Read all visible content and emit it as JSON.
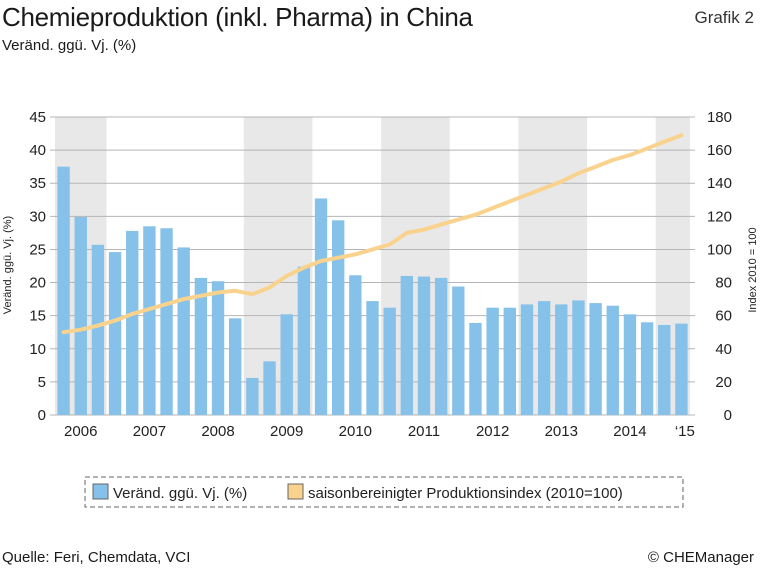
{
  "header": {
    "title": "Chemieproduktion (inkl. Pharma) in China",
    "subtitle": "Veränd. ggü. Vj. (%)",
    "figure_label": "Grafik 2"
  },
  "footer": {
    "source": "Quelle: Feri, Chemdata, VCI",
    "copyright": "© CHEManager"
  },
  "colors": {
    "bars": "#85c1e9",
    "line": "#f9d38e",
    "band": "#e8e8e8",
    "grid": "#b5b5b5"
  },
  "chart_data": {
    "type": "bar",
    "title": "Chemieproduktion (inkl. Pharma) in China",
    "ylabel": "Veränd. ggü. Vj. (%)",
    "y2label": "Index 2010 = 100",
    "ylim": [
      0,
      45
    ],
    "y2lim": [
      0,
      180
    ],
    "yticks": [
      "0",
      "5",
      "10",
      "15",
      "20",
      "25",
      "30",
      "35",
      "40",
      "45"
    ],
    "y2ticks": [
      "0",
      "20",
      "40",
      "60",
      "80",
      "100",
      "120",
      "140",
      "160",
      "180"
    ],
    "grid": true,
    "legend_position": "bottom",
    "x_labels": [
      "2006",
      "2007",
      "2008",
      "2009",
      "2010",
      "2011",
      "2012",
      "2013",
      "2014",
      "‘15"
    ],
    "series": [
      {
        "name": "Veränd. ggü. Vj. (%)",
        "type": "bar",
        "axis": "left",
        "values": [
          37.5,
          29.9,
          25.7,
          24.6,
          27.8,
          28.5,
          28.2,
          25.3,
          20.7,
          20.2,
          14.6,
          5.6,
          8.1,
          15.2,
          22.4,
          32.7,
          29.4,
          21.1,
          17.2,
          16.2,
          21.0,
          20.9,
          20.7,
          19.4,
          13.9,
          16.2,
          16.2,
          16.7,
          17.2,
          16.7,
          17.3,
          16.9,
          16.5,
          15.2,
          14.0,
          13.6,
          13.8
        ]
      },
      {
        "name": "saisonbereinigter Produktionsindex (2010=100)",
        "type": "line",
        "axis": "right",
        "values": [
          50,
          51.5,
          54,
          57,
          61,
          64,
          67,
          70,
          72,
          74,
          75,
          73,
          77,
          84,
          89,
          93,
          95,
          97,
          100,
          103,
          110,
          112,
          115,
          118,
          121,
          125,
          129,
          133,
          137,
          141,
          146,
          150,
          154,
          157,
          161,
          165,
          169
        ]
      }
    ]
  }
}
